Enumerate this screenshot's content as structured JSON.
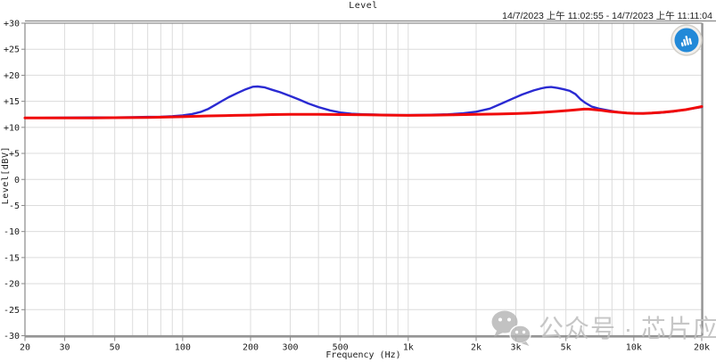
{
  "header": {
    "title": "Level",
    "timestamp": "14/7/2023 上午 11:02:55  -  14/7/2023 上午 11:11:04"
  },
  "branding": {
    "logo_icon": "audio-analyzer-bars-logo",
    "logo_blue": "#2289d8",
    "logo_ring": "#d3d0ca"
  },
  "watermark": {
    "icon": "wechat-icon",
    "text": "公众号 · 芯片应用",
    "color": "#bfbfbf"
  },
  "colors": {
    "grid": "#dcdcdc",
    "frame": "#8a8a8a",
    "frame_heavy": "#979797",
    "text": "#1c1c1c"
  },
  "chart_data": {
    "type": "line",
    "title": "Level",
    "xlabel": "Frequency (Hz)",
    "ylabel": "Level[dBV]",
    "x_scale": "log",
    "xlim": [
      20,
      20000
    ],
    "ylim": [
      -30,
      30
    ],
    "grid": true,
    "legend": "none",
    "y_ticks": [
      {
        "v": 30,
        "label": "+30"
      },
      {
        "v": 25,
        "label": "+25"
      },
      {
        "v": 20,
        "label": "+20"
      },
      {
        "v": 15,
        "label": "+15"
      },
      {
        "v": 10,
        "label": "+10"
      },
      {
        "v": 5,
        "label": "+5"
      },
      {
        "v": 0,
        "label": "0"
      },
      {
        "v": -5,
        "label": "-5"
      },
      {
        "v": -10,
        "label": "-10"
      },
      {
        "v": -15,
        "label": "-15"
      },
      {
        "v": -20,
        "label": "-20"
      },
      {
        "v": -25,
        "label": "-25"
      },
      {
        "v": -30,
        "label": "-30"
      }
    ],
    "x_ticks": [
      {
        "f": 20,
        "label": "20"
      },
      {
        "f": 30,
        "label": "30"
      },
      {
        "f": 50,
        "label": "50"
      },
      {
        "f": 100,
        "label": "100"
      },
      {
        "f": 200,
        "label": "200"
      },
      {
        "f": 300,
        "label": "300"
      },
      {
        "f": 500,
        "label": "500"
      },
      {
        "f": 1000,
        "label": "1k"
      },
      {
        "f": 2000,
        "label": "2k"
      },
      {
        "f": 3000,
        "label": "3k"
      },
      {
        "f": 5000,
        "label": "5k"
      },
      {
        "f": 10000,
        "label": "10k"
      },
      {
        "f": 20000,
        "label": "20k"
      }
    ],
    "x_gridlines": [
      30,
      40,
      50,
      60,
      70,
      80,
      90,
      100,
      200,
      300,
      400,
      500,
      600,
      700,
      800,
      900,
      1000,
      2000,
      3000,
      4000,
      5000,
      6000,
      7000,
      8000,
      9000,
      10000
    ],
    "series": [
      {
        "name": "response-blue",
        "color": "#2a2ad2",
        "width": 2.4,
        "points": [
          [
            20,
            11.8
          ],
          [
            30,
            11.85
          ],
          [
            40,
            11.9
          ],
          [
            50,
            11.9
          ],
          [
            60,
            11.95
          ],
          [
            70,
            12.0
          ],
          [
            80,
            12.05
          ],
          [
            90,
            12.15
          ],
          [
            100,
            12.3
          ],
          [
            110,
            12.55
          ],
          [
            120,
            12.95
          ],
          [
            130,
            13.55
          ],
          [
            140,
            14.35
          ],
          [
            150,
            15.1
          ],
          [
            160,
            15.8
          ],
          [
            175,
            16.6
          ],
          [
            190,
            17.3
          ],
          [
            205,
            17.8
          ],
          [
            215,
            17.85
          ],
          [
            230,
            17.7
          ],
          [
            250,
            17.2
          ],
          [
            270,
            16.75
          ],
          [
            300,
            16.0
          ],
          [
            330,
            15.3
          ],
          [
            360,
            14.6
          ],
          [
            400,
            13.9
          ],
          [
            450,
            13.25
          ],
          [
            500,
            12.85
          ],
          [
            560,
            12.6
          ],
          [
            630,
            12.5
          ],
          [
            700,
            12.45
          ],
          [
            800,
            12.4
          ],
          [
            900,
            12.35
          ],
          [
            1000,
            12.35
          ],
          [
            1200,
            12.4
          ],
          [
            1500,
            12.5
          ],
          [
            1750,
            12.7
          ],
          [
            2000,
            13.0
          ],
          [
            2300,
            13.6
          ],
          [
            2600,
            14.6
          ],
          [
            2900,
            15.5
          ],
          [
            3200,
            16.3
          ],
          [
            3600,
            17.1
          ],
          [
            3900,
            17.5
          ],
          [
            4100,
            17.7
          ],
          [
            4300,
            17.75
          ],
          [
            4600,
            17.55
          ],
          [
            4900,
            17.3
          ],
          [
            5200,
            17.0
          ],
          [
            5500,
            16.4
          ],
          [
            5800,
            15.4
          ],
          [
            6100,
            14.7
          ],
          [
            6500,
            14.0
          ],
          [
            7000,
            13.6
          ],
          [
            7600,
            13.3
          ],
          [
            8300,
            13.0
          ],
          [
            9000,
            12.8
          ],
          [
            10000,
            12.7
          ],
          [
            11500,
            12.7
          ],
          [
            13000,
            12.8
          ],
          [
            15000,
            13.05
          ],
          [
            17000,
            13.4
          ],
          [
            20000,
            13.9
          ]
        ]
      },
      {
        "name": "response-red",
        "color": "#f00a0a",
        "width": 3,
        "points": [
          [
            20,
            11.8
          ],
          [
            30,
            11.8
          ],
          [
            40,
            11.82
          ],
          [
            50,
            11.85
          ],
          [
            70,
            11.9
          ],
          [
            100,
            12.05
          ],
          [
            130,
            12.2
          ],
          [
            170,
            12.3
          ],
          [
            200,
            12.35
          ],
          [
            250,
            12.45
          ],
          [
            300,
            12.5
          ],
          [
            400,
            12.5
          ],
          [
            500,
            12.45
          ],
          [
            650,
            12.4
          ],
          [
            800,
            12.35
          ],
          [
            1000,
            12.3
          ],
          [
            1300,
            12.35
          ],
          [
            1600,
            12.4
          ],
          [
            2000,
            12.5
          ],
          [
            2500,
            12.55
          ],
          [
            3000,
            12.65
          ],
          [
            3500,
            12.75
          ],
          [
            4000,
            12.9
          ],
          [
            4500,
            13.05
          ],
          [
            5000,
            13.2
          ],
          [
            5500,
            13.35
          ],
          [
            6000,
            13.5
          ],
          [
            6300,
            13.5
          ],
          [
            6700,
            13.4
          ],
          [
            7200,
            13.25
          ],
          [
            7800,
            13.05
          ],
          [
            8500,
            12.9
          ],
          [
            9300,
            12.75
          ],
          [
            10000,
            12.7
          ],
          [
            11000,
            12.68
          ],
          [
            12000,
            12.75
          ],
          [
            13500,
            12.9
          ],
          [
            15000,
            13.1
          ],
          [
            17000,
            13.4
          ],
          [
            18500,
            13.7
          ],
          [
            20000,
            14.0
          ]
        ]
      }
    ]
  }
}
